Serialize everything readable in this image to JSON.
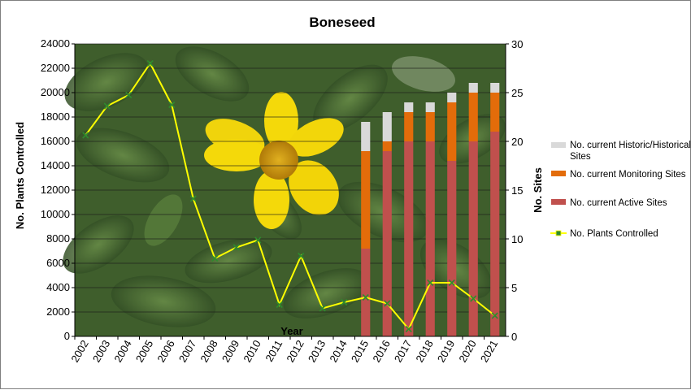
{
  "chart_data": {
    "type": "bar+line",
    "title": "Boneseed",
    "xlabel": "Year",
    "ylabel_left": "No. Plants Controlled",
    "ylabel_right": "No. Sites",
    "ylim_left": [
      0,
      24000
    ],
    "ylim_right": [
      0,
      30
    ],
    "yticks_left": [
      0,
      2000,
      4000,
      6000,
      8000,
      10000,
      12000,
      14000,
      16000,
      18000,
      20000,
      22000,
      24000
    ],
    "yticks_right": [
      0,
      5,
      10,
      15,
      20,
      25,
      30
    ],
    "categories": [
      "2002",
      "2003",
      "2004",
      "2005",
      "2006",
      "2007",
      "2008",
      "2009",
      "2010",
      "2011",
      "2012",
      "2013",
      "2014",
      "2015",
      "2016",
      "2017",
      "2018",
      "2019",
      "2020",
      "2021"
    ],
    "grid": true,
    "legend_position": "right",
    "series": [
      {
        "name": "No. current Historic/Historical Sites",
        "kind": "stacked-bar",
        "axis": "right",
        "color": "#d9d9d9",
        "values": [
          null,
          null,
          null,
          null,
          null,
          null,
          null,
          null,
          null,
          null,
          null,
          null,
          null,
          3,
          3,
          1,
          1,
          1,
          1,
          1
        ]
      },
      {
        "name": "No. current Monitoring Sites",
        "kind": "stacked-bar",
        "axis": "right",
        "color": "#e36c0a",
        "values": [
          null,
          null,
          null,
          null,
          null,
          null,
          null,
          null,
          null,
          null,
          null,
          null,
          null,
          10,
          1,
          3,
          3,
          6,
          5,
          4
        ]
      },
      {
        "name": "No. current Active Sites",
        "kind": "stacked-bar",
        "axis": "right",
        "color": "#c0504d",
        "values": [
          null,
          null,
          null,
          null,
          null,
          null,
          null,
          null,
          null,
          null,
          null,
          null,
          null,
          9,
          19,
          20,
          20,
          18,
          20,
          21
        ]
      },
      {
        "name": "No. Plants Controlled",
        "kind": "line",
        "axis": "left",
        "color": "#ffff00",
        "values": [
          16500,
          18900,
          19800,
          22400,
          19000,
          11300,
          6400,
          7300,
          7900,
          2600,
          6600,
          2300,
          2800,
          3200,
          2700,
          600,
          4400,
          4400,
          3100,
          1700
        ]
      }
    ]
  },
  "colors": {
    "photo_foliage": "#3c5a2a",
    "flower_petal": "#f4d90a",
    "flower_center": "#c99a0e",
    "line_marker": "#2e8b2e"
  }
}
